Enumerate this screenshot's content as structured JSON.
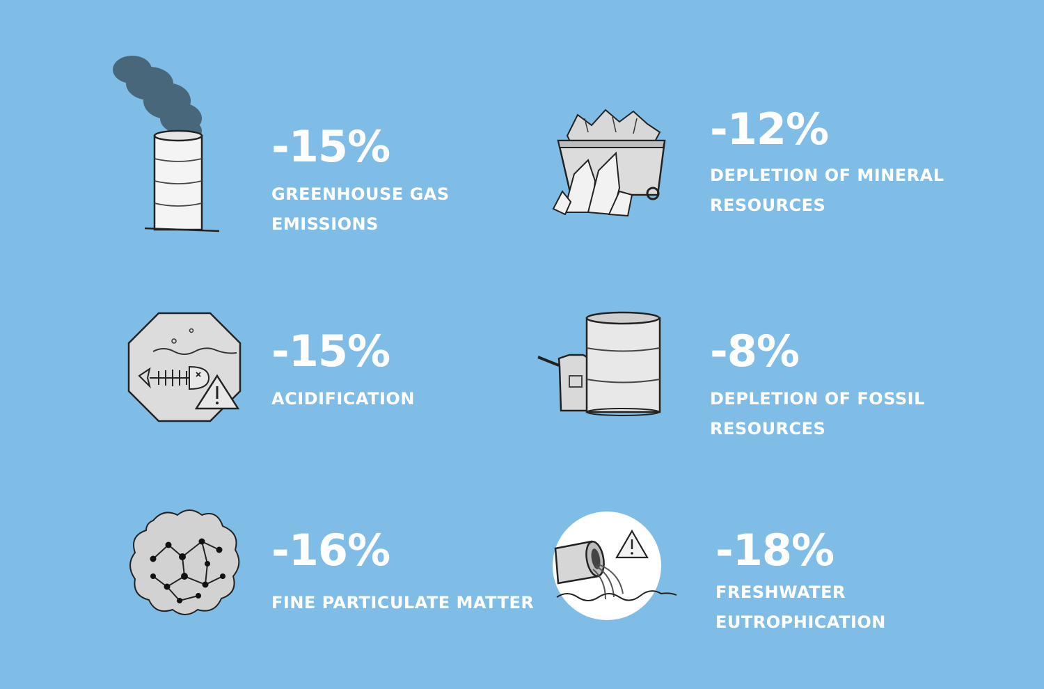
{
  "background_color": "#80bde6",
  "text_color": "#ffffff",
  "items": [
    {
      "icon": "smokestack-icon",
      "percent": "-15%",
      "label_lines": [
        "GREENHOUSE GAS",
        "EMISSIONS"
      ]
    },
    {
      "icon": "mining-cart-icon",
      "percent": "-12%",
      "label_lines": [
        "DEPLETION OF MINERAL",
        "RESOURCES"
      ]
    },
    {
      "icon": "dead-fish-warning-icon",
      "percent": "-15%",
      "label_lines": [
        "ACIDIFICATION"
      ]
    },
    {
      "icon": "oil-barrel-canister-icon",
      "percent": "-8%",
      "label_lines": [
        "DEPLETION OF FOSSIL",
        "RESOURCES"
      ]
    },
    {
      "icon": "particle-cloud-icon",
      "percent": "-16%",
      "label_lines": [
        "FINE PARTICULATE MATTER"
      ]
    },
    {
      "icon": "discharge-pipe-icon",
      "percent": "-18%",
      "label_lines": [
        "FRESHWATER",
        "EUTROPHICATION"
      ]
    }
  ]
}
